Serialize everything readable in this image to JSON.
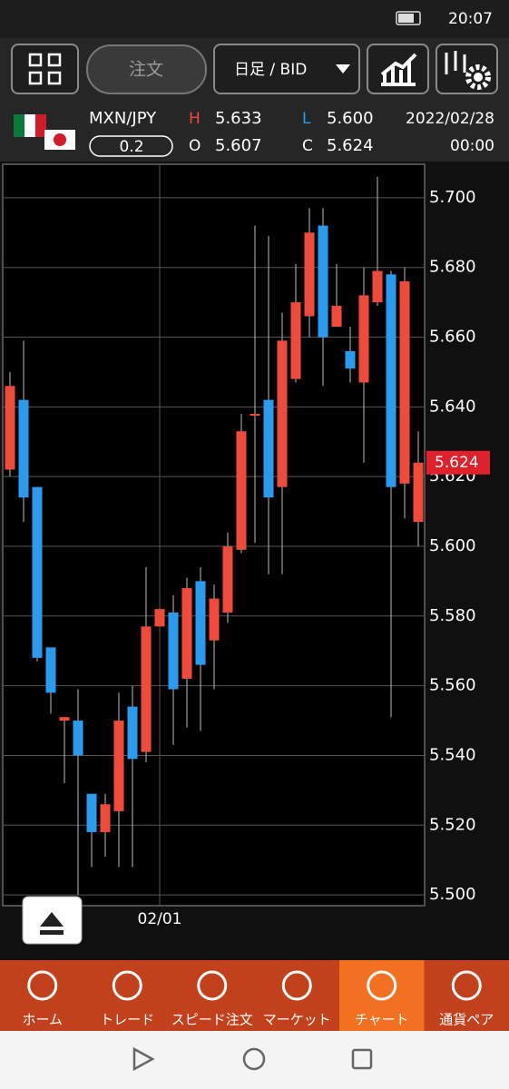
{
  "status_bar": {
    "time": "20:07"
  },
  "toolbar": {
    "order_button": "注文",
    "period_select": "日足 / BID"
  },
  "quote": {
    "pair": "MXN/JPY",
    "lot": "0.2",
    "high_label": "H",
    "high": "5.633",
    "low_label": "L",
    "low": "5.600",
    "open_label": "O",
    "open": "5.607",
    "close_label": "C",
    "close": "5.624",
    "date": "2022/02/28",
    "time": "00:00"
  },
  "chart_data": {
    "type": "candlestick",
    "categories": [
      null,
      null,
      null,
      null,
      null,
      null,
      null,
      null,
      null,
      null,
      null,
      "02/01",
      null,
      null,
      null,
      null,
      null,
      null,
      null,
      null,
      null,
      null,
      null,
      null,
      null,
      null,
      null,
      null,
      null,
      null,
      null
    ],
    "open": [
      5.622,
      5.642,
      5.617,
      5.571,
      5.55,
      5.55,
      5.529,
      5.518,
      5.524,
      5.554,
      5.541,
      5.577,
      5.581,
      5.562,
      5.59,
      5.573,
      5.581,
      5.599,
      5.638,
      5.642,
      5.617,
      5.648,
      5.666,
      5.692,
      5.663,
      5.656,
      5.647,
      5.67,
      5.678,
      5.618,
      5.607
    ],
    "high": [
      5.65,
      5.659,
      5.617,
      5.571,
      5.551,
      5.559,
      5.529,
      5.529,
      5.558,
      5.56,
      5.594,
      5.582,
      5.586,
      5.591,
      5.594,
      5.589,
      5.604,
      5.638,
      5.692,
      5.689,
      5.667,
      5.681,
      5.697,
      5.697,
      5.681,
      5.663,
      5.68,
      5.706,
      5.679,
      5.68,
      5.633
    ],
    "low": [
      5.62,
      5.607,
      5.567,
      5.552,
      5.532,
      5.5,
      5.508,
      5.511,
      5.508,
      5.508,
      5.538,
      5.577,
      5.543,
      5.548,
      5.547,
      5.559,
      5.578,
      5.598,
      5.601,
      5.592,
      5.592,
      5.647,
      5.66,
      5.646,
      5.663,
      5.647,
      5.624,
      5.669,
      5.551,
      5.608,
      5.6
    ],
    "close": [
      5.646,
      5.614,
      5.568,
      5.558,
      5.551,
      5.54,
      5.518,
      5.526,
      5.55,
      5.539,
      5.577,
      5.582,
      5.559,
      5.588,
      5.566,
      5.585,
      5.6,
      5.633,
      5.638,
      5.614,
      5.659,
      5.67,
      5.69,
      5.66,
      5.669,
      5.651,
      5.672,
      5.679,
      5.617,
      5.676,
      5.624
    ],
    "up_color": "#f04a3a",
    "down_color": "#2a9cf0",
    "ylim": [
      5.4969,
      5.7096
    ],
    "yticks": [
      {
        "value": 5.5,
        "label": "5.500"
      },
      {
        "value": 5.52,
        "label": "5.520"
      },
      {
        "value": 5.54,
        "label": "5.540"
      },
      {
        "value": 5.56,
        "label": "5.560"
      },
      {
        "value": 5.58,
        "label": "5.580"
      },
      {
        "value": 5.6,
        "label": "5.600"
      },
      {
        "value": 5.62,
        "label": "5.620"
      },
      {
        "value": 5.64,
        "label": "5.640"
      },
      {
        "value": 5.66,
        "label": "5.660"
      },
      {
        "value": 5.68,
        "label": "5.680"
      },
      {
        "value": 5.7,
        "label": "5.700"
      }
    ],
    "grid": true,
    "last_price": {
      "value": 5.624,
      "label": "5.624"
    }
  },
  "nav": {
    "active": 4,
    "items": [
      "ホーム",
      "トレード",
      "スピード注文",
      "マーケット",
      "チャート",
      "通貨ペア"
    ]
  }
}
